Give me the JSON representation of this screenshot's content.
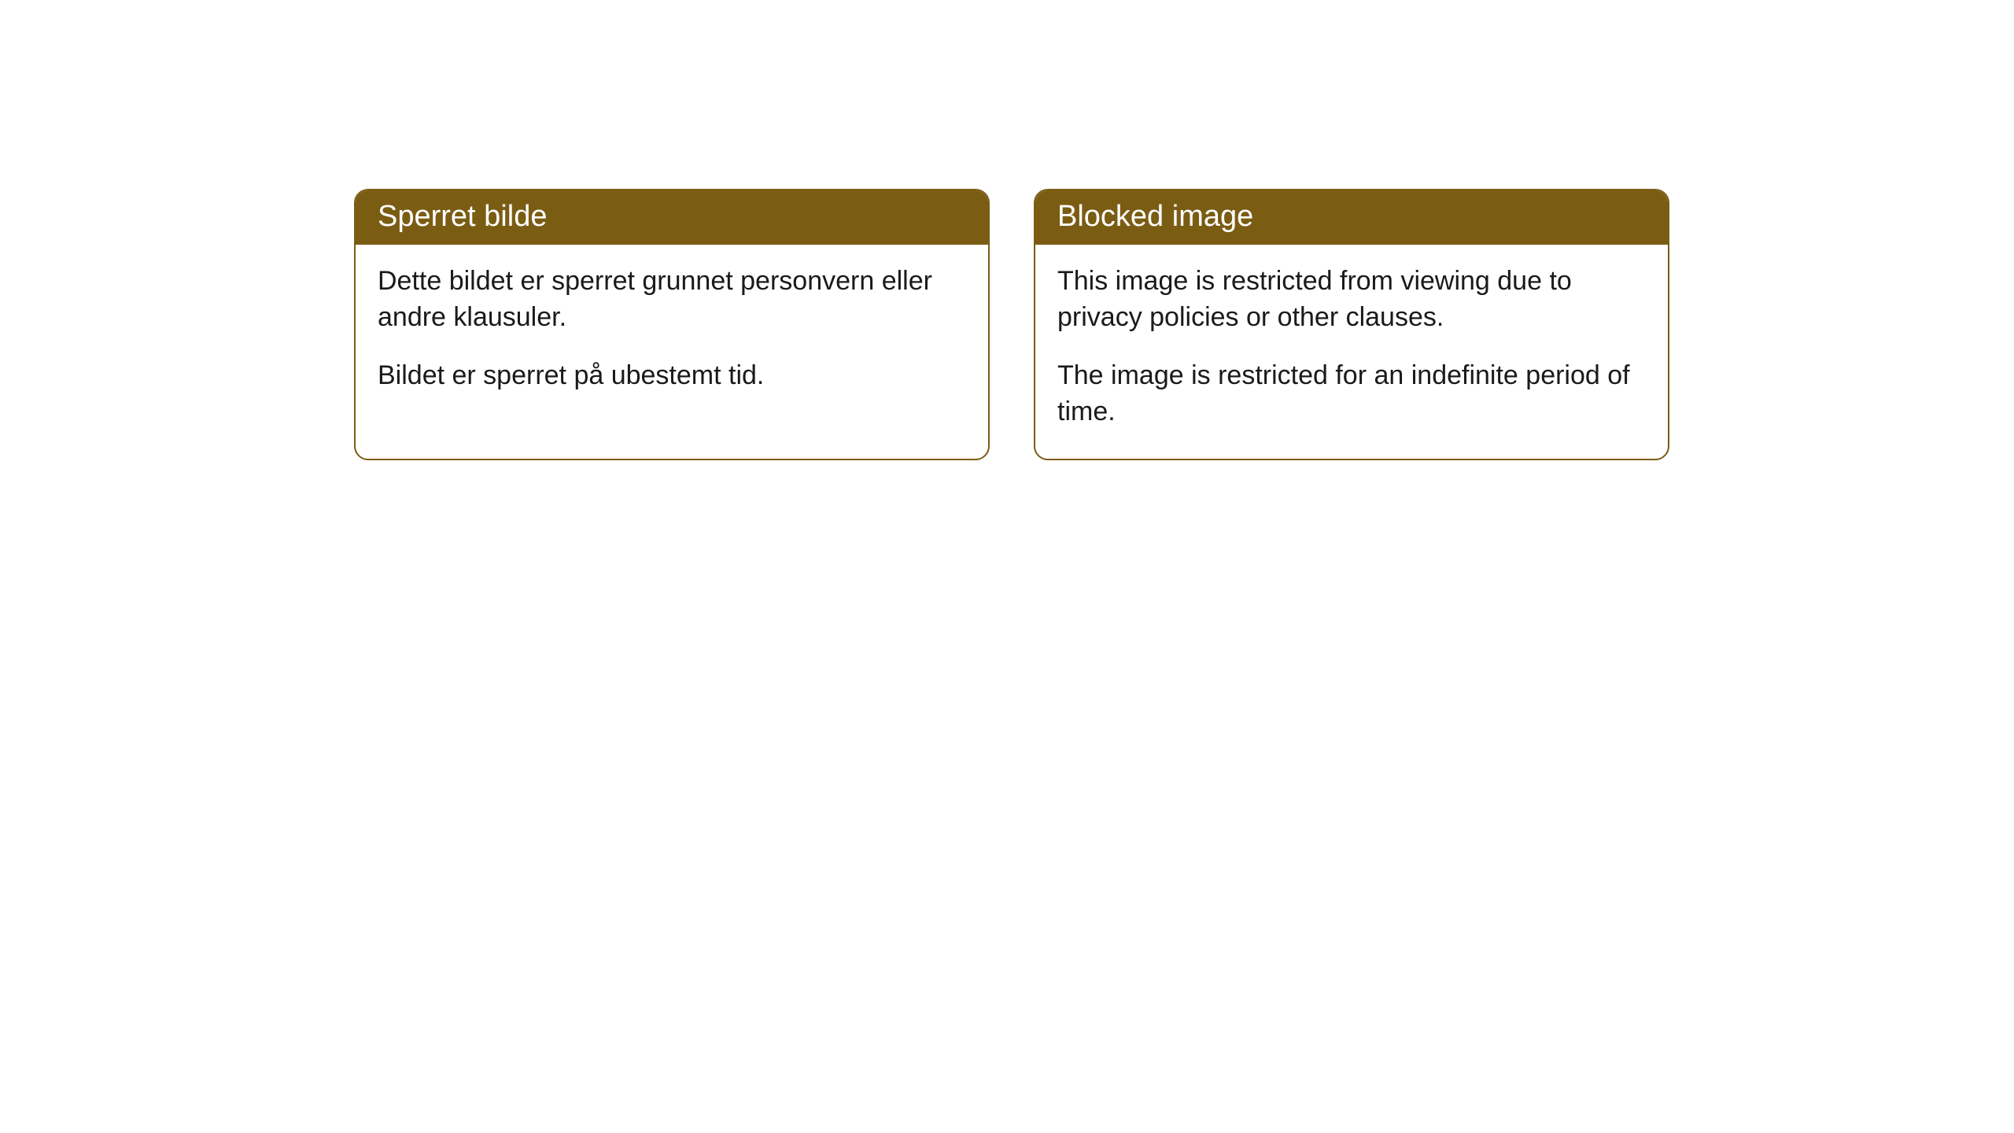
{
  "cards": [
    {
      "title": "Sperret bilde",
      "paragraph1": "Dette bildet er sperret grunnet personvern eller andre klausuler.",
      "paragraph2": "Bildet er sperret på ubestemt tid."
    },
    {
      "title": "Blocked image",
      "paragraph1": "This image is restricted from viewing due to privacy policies or other clauses.",
      "paragraph2": "The image is restricted for an indefinite period of time."
    }
  ],
  "style": {
    "header_background": "#7a5c13",
    "header_text_color": "#ffffff",
    "border_color": "#7a5c13",
    "body_background": "#ffffff",
    "body_text_color": "#1a1a1a",
    "border_radius": 18,
    "title_fontsize": 38,
    "body_fontsize": 34
  }
}
